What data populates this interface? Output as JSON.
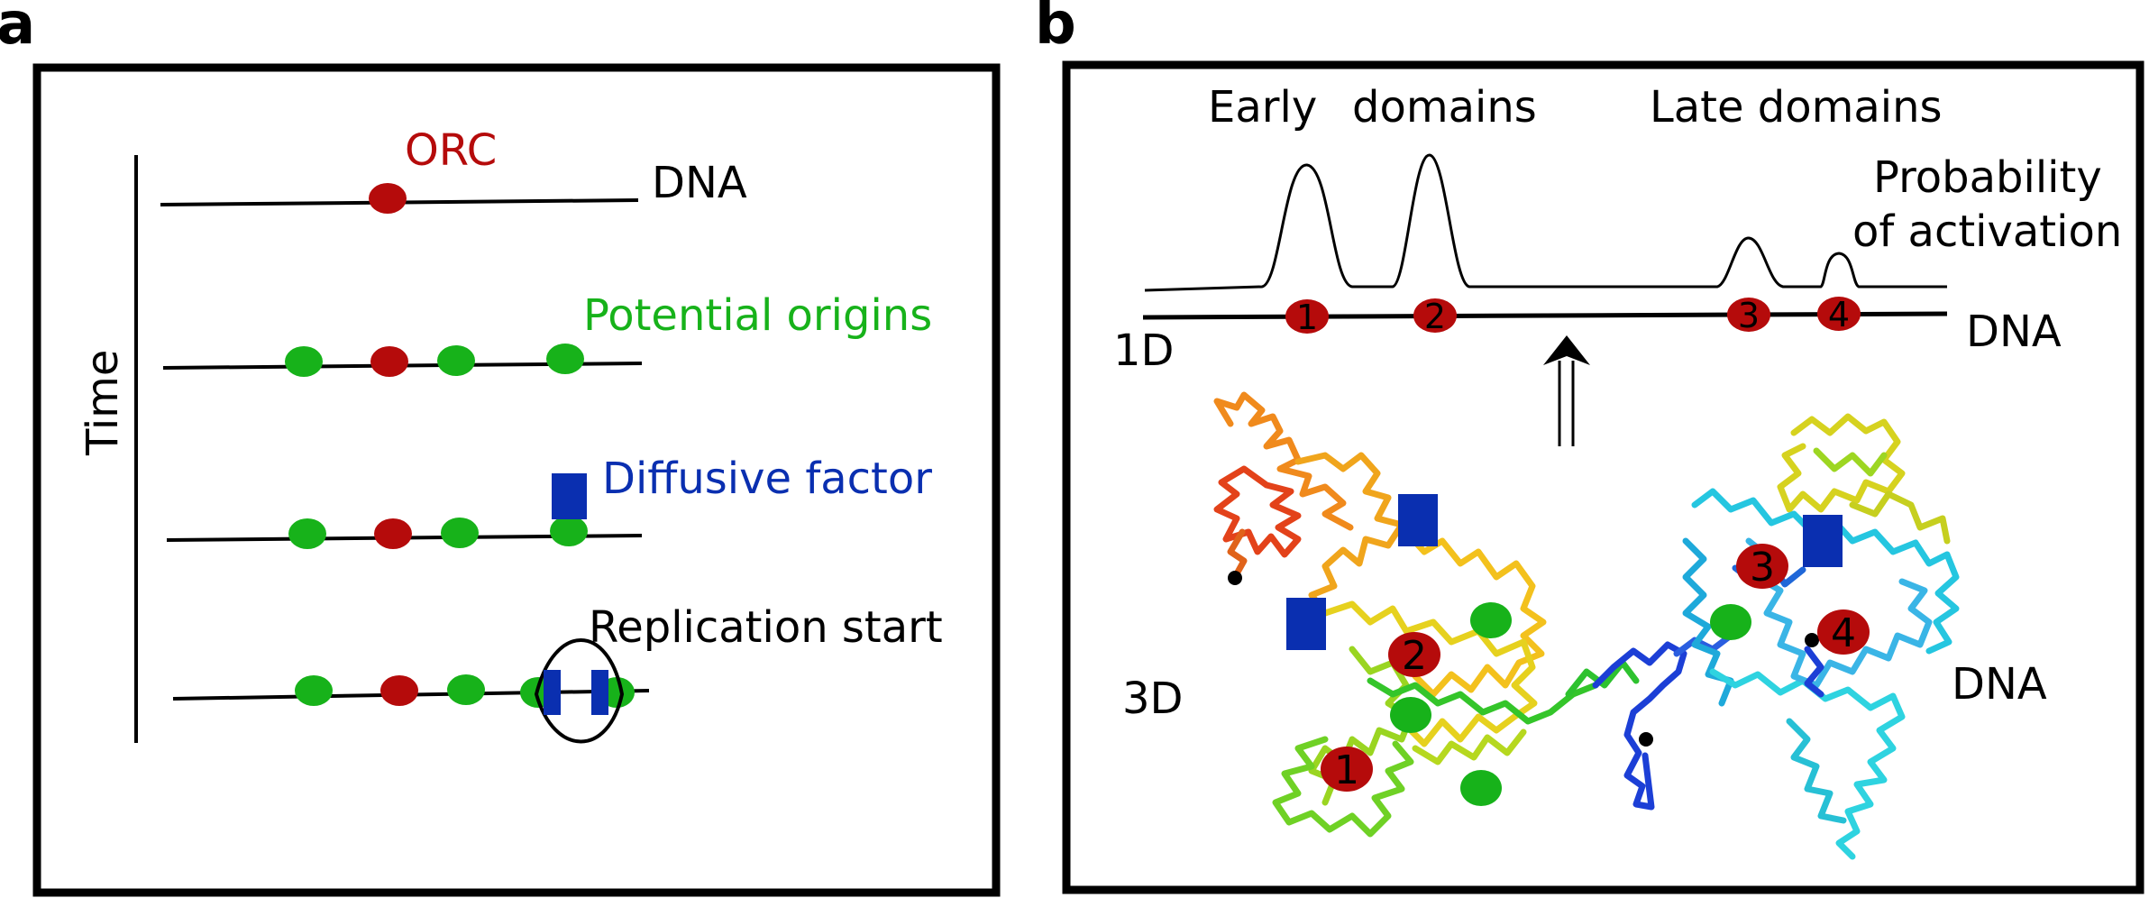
{
  "colors": {
    "orc": "#b50b0b",
    "origin": "#17b21a",
    "factor": "#0a2fb0",
    "line": "#000000"
  },
  "panel_a": {
    "letter": "a",
    "time_label": "Time",
    "orc_label": "ORC",
    "dna_label": "DNA",
    "potential_origins_label": "Potential origins",
    "diffusive_factor_label": "Diffusive factor",
    "replication_start_label": "Replication start"
  },
  "panel_b": {
    "letter": "b",
    "early_label": "Early",
    "domains_label": "domains",
    "late_domains_label": "Late domains",
    "probability_line1": "Probability",
    "probability_line2": "of activation",
    "label_1d": "1D",
    "dna_label_1d": "DNA",
    "label_3d": "3D",
    "dna_label_3d": "DNA",
    "origin_numbers": [
      "1",
      "2",
      "3",
      "4"
    ],
    "origin_numbers_3d": [
      "1",
      "2",
      "3",
      "4"
    ]
  }
}
